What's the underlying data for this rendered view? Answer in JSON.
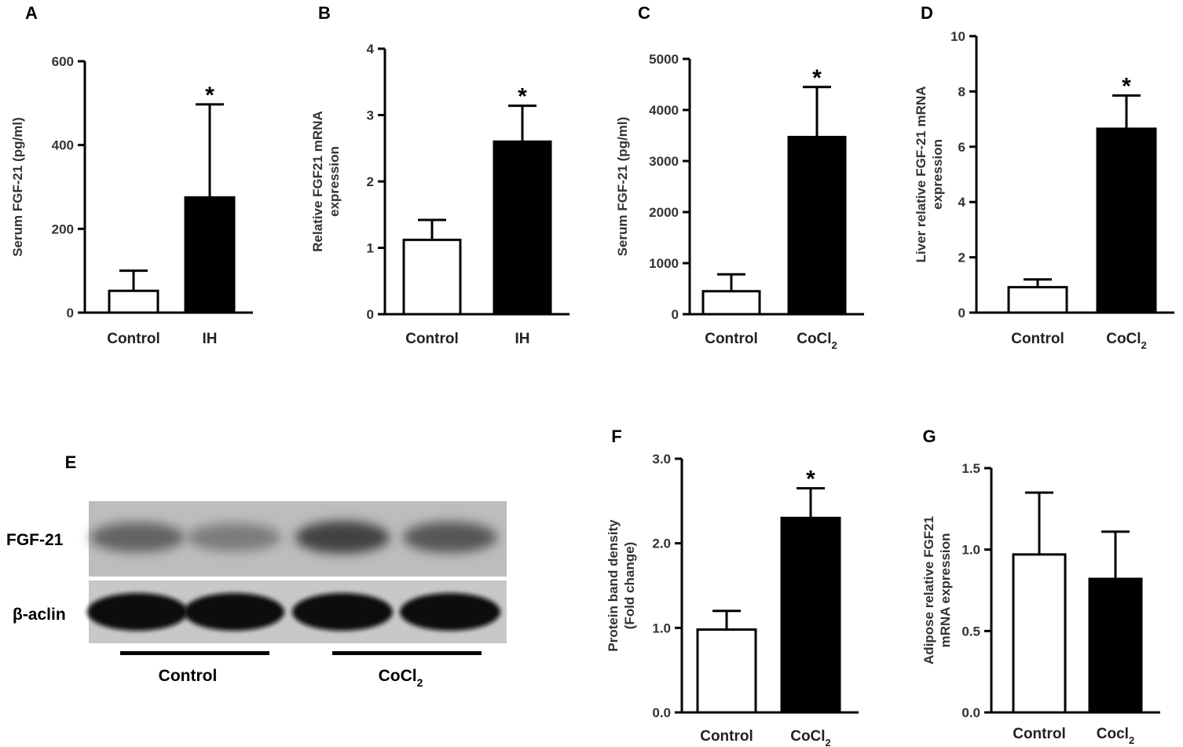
{
  "colors": {
    "control_fill": "#ffffff",
    "treatment_fill": "#000000",
    "axis": "#000000",
    "blot_bg": "#bdbdbd"
  },
  "chart_data": [
    {
      "panel": "A",
      "type": "bar",
      "ylabel": "Serum FGF-21 (pg/ml)",
      "ylim": [
        0,
        600
      ],
      "yticks": [
        "0",
        "200",
        "400",
        "600"
      ],
      "categories": [
        "Control",
        "IH"
      ],
      "values": [
        52,
        275
      ],
      "errors": [
        48,
        222
      ],
      "significance": [
        "",
        "*"
      ]
    },
    {
      "panel": "B",
      "type": "bar",
      "ylabel": [
        "Relative FGF21 mRNA",
        "expression"
      ],
      "ylim": [
        0,
        4
      ],
      "yticks": [
        "0",
        "1",
        "2",
        "3",
        "4"
      ],
      "categories": [
        "Control",
        "IH"
      ],
      "values": [
        1.12,
        2.6
      ],
      "errors": [
        0.3,
        0.54
      ],
      "significance": [
        "",
        "*"
      ]
    },
    {
      "panel": "C",
      "type": "bar",
      "ylabel": "Serum FGF-21 (pg/ml)",
      "ylim": [
        0,
        5000
      ],
      "yticks": [
        "0",
        "1000",
        "2000",
        "3000",
        "4000",
        "5000"
      ],
      "categories": [
        "Control",
        "CoCl"
      ],
      "category_subscripts": [
        "",
        "2"
      ],
      "values": [
        450,
        3470
      ],
      "errors": [
        330,
        980
      ],
      "significance": [
        "",
        "*"
      ]
    },
    {
      "panel": "D",
      "type": "bar",
      "ylabel": [
        "Liver relative FGF-21 mRNA",
        "expression"
      ],
      "ylim": [
        0,
        10
      ],
      "yticks": [
        "0",
        "2",
        "4",
        "6",
        "8",
        "10"
      ],
      "categories": [
        "Control",
        "CoCl"
      ],
      "category_subscripts": [
        "",
        "2"
      ],
      "values": [
        0.92,
        6.65
      ],
      "errors": [
        0.28,
        1.2
      ],
      "significance": [
        "",
        "*"
      ]
    },
    {
      "panel": "F",
      "type": "bar",
      "ylabel": [
        "Protein band density",
        "(Fold change)"
      ],
      "ylim": [
        0,
        3
      ],
      "yticks": [
        "0.0",
        "1.0",
        "2.0",
        "3.0"
      ],
      "categories": [
        "Control",
        "CoCl"
      ],
      "category_subscripts": [
        "",
        "2"
      ],
      "values": [
        0.98,
        2.3
      ],
      "errors": [
        0.22,
        0.35
      ],
      "significance": [
        "",
        "*"
      ]
    },
    {
      "panel": "G",
      "type": "bar",
      "ylabel": [
        "Adipose relative FGF21",
        "mRNA expression"
      ],
      "ylim": [
        0,
        1.5
      ],
      "yticks": [
        "0.0",
        "0.5",
        "1.0",
        "1.5"
      ],
      "categories": [
        "Control",
        "Cocl"
      ],
      "category_subscripts": [
        "",
        "2"
      ],
      "values": [
        0.97,
        0.82
      ],
      "errors": [
        0.38,
        0.29
      ],
      "significance": [
        "",
        ""
      ]
    }
  ],
  "blot": {
    "panel": "E",
    "rows": [
      "FGF-21",
      "β-aclin"
    ],
    "groups": [
      "Control",
      "CoCl"
    ],
    "group_subscripts": [
      "",
      "2"
    ],
    "fgf21_intensity": [
      0.55,
      0.35,
      0.8,
      0.65
    ],
    "actin_intensity": [
      1.0,
      1.0,
      1.0,
      1.0
    ]
  }
}
